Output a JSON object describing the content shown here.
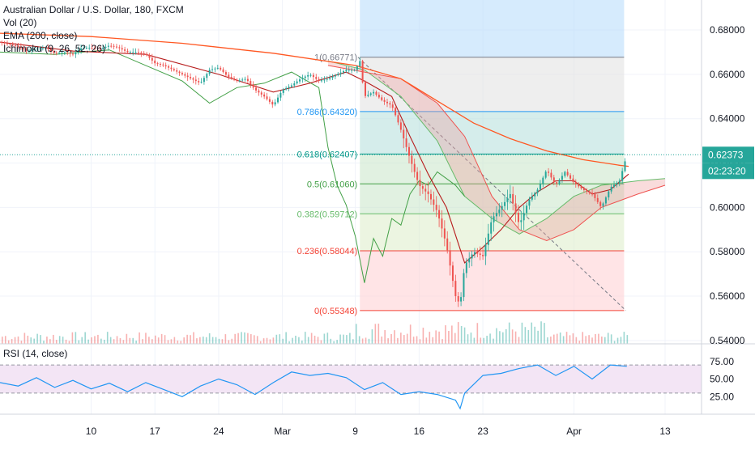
{
  "legend": {
    "symbol": "Australian Dollar / U.S. Dollar, 180, FXCM",
    "volume": "Vol (20)",
    "ema": "EMA (200, close)",
    "ichimoku": "Ichimoku (9, 26, 52, 26)"
  },
  "colors": {
    "up": "#26a69a",
    "down": "#ef5350",
    "ema": "#ff5722",
    "tenkan": "#b71c1c",
    "lagging": "#43a047",
    "rsi": "#2196f3",
    "rsi_band": "#f3e5f5",
    "fib_0": "#f44336",
    "fib_236": "#f44336",
    "fib_382": "#66bb6a",
    "fib_5": "#43a047",
    "fib_618": "#009688",
    "fib_786": "#2196f3",
    "fib_1": "#787b86",
    "price_tag": "#26a69a",
    "time_tag": "#26a69a",
    "projection": "#bbdefb"
  },
  "chart_data": {
    "type": "candlestick",
    "title": "Australian Dollar / U.S. Dollar, 180, FXCM",
    "price_axis": {
      "ticks": [
        "0.68000",
        "0.66000",
        "0.64000",
        "0.62000",
        "0.60000",
        "0.58000",
        "0.56000",
        "0.54000"
      ],
      "tick_values": [
        0.68,
        0.66,
        0.64,
        0.62,
        0.6,
        0.58,
        0.56,
        0.54
      ],
      "range": [
        0.5385,
        0.6935
      ]
    },
    "rsi_axis": {
      "label": "RSI (14, close)",
      "ticks": [
        "75.00",
        "50.00",
        "25.00"
      ],
      "tick_values": [
        75,
        50,
        25
      ],
      "range": [
        0,
        100
      ]
    },
    "time_axis": {
      "labels": [
        "10",
        "17",
        "24",
        "Mar",
        "9",
        "16",
        "23",
        "Apr",
        "13"
      ],
      "label_days": [
        10,
        17,
        24,
        31,
        39,
        46,
        53,
        63,
        73
      ],
      "range": [
        0,
        77
      ]
    },
    "last_price": "0.62373",
    "countdown": "02:23:20",
    "fibonacci": [
      {
        "label": "1(0.66771)",
        "level": 1,
        "price": 0.66771
      },
      {
        "label": "0.786(0.64320)",
        "level": 0.786,
        "price": 0.6432
      },
      {
        "label": "0.618(0.62407)",
        "level": 0.618,
        "price": 0.62407
      },
      {
        "label": "0.5(0.61060)",
        "level": 0.5,
        "price": 0.6106
      },
      {
        "label": "0.382(0.59712)",
        "level": 0.382,
        "price": 0.59712
      },
      {
        "label": "0.236(0.58044)",
        "level": 0.236,
        "price": 0.58044
      },
      {
        "label": "0(0.55348)",
        "level": 0,
        "price": 0.55348
      }
    ],
    "fib_span_days": [
      39.5,
      68.5
    ],
    "trend_line": {
      "from": [
        39.3,
        0.6677
      ],
      "to": [
        68.7,
        0.5535
      ]
    },
    "projection_span_days": [
      39.5,
      68.5
    ],
    "close": [
      [
        0,
        0.6745
      ],
      [
        1,
        0.6735
      ],
      [
        2,
        0.6725
      ],
      [
        3,
        0.6705
      ],
      [
        4,
        0.6715
      ],
      [
        5,
        0.672
      ],
      [
        6,
        0.6695
      ],
      [
        7,
        0.67
      ],
      [
        8,
        0.669
      ],
      [
        9,
        0.672
      ],
      [
        10,
        0.672
      ],
      [
        11,
        0.6715
      ],
      [
        12,
        0.673
      ],
      [
        13,
        0.672
      ],
      [
        14,
        0.67
      ],
      [
        15,
        0.67
      ],
      [
        16,
        0.669
      ],
      [
        17,
        0.665
      ],
      [
        18,
        0.664
      ],
      [
        19,
        0.662
      ],
      [
        20,
        0.66
      ],
      [
        21,
        0.658
      ],
      [
        22,
        0.656
      ],
      [
        23,
        0.662
      ],
      [
        24,
        0.663
      ],
      [
        25,
        0.659
      ],
      [
        26,
        0.657
      ],
      [
        27,
        0.658
      ],
      [
        28,
        0.653
      ],
      [
        29,
        0.65
      ],
      [
        30,
        0.646
      ],
      [
        31,
        0.653
      ],
      [
        32,
        0.655
      ],
      [
        33,
        0.658
      ],
      [
        34,
        0.66
      ],
      [
        35,
        0.657
      ],
      [
        36,
        0.658
      ],
      [
        37,
        0.66
      ],
      [
        38,
        0.662
      ],
      [
        39,
        0.662
      ],
      [
        39.5,
        0.666
      ],
      [
        40,
        0.65
      ],
      [
        41,
        0.652
      ],
      [
        42,
        0.648
      ],
      [
        43,
        0.646
      ],
      [
        44,
        0.635
      ],
      [
        45,
        0.622
      ],
      [
        46,
        0.61
      ],
      [
        47,
        0.606
      ],
      [
        48,
        0.598
      ],
      [
        49,
        0.583
      ],
      [
        50,
        0.56
      ],
      [
        50.5,
        0.556
      ],
      [
        51,
        0.574
      ],
      [
        52,
        0.58
      ],
      [
        53,
        0.578
      ],
      [
        54,
        0.595
      ],
      [
        55,
        0.6
      ],
      [
        56,
        0.606
      ],
      [
        57,
        0.592
      ],
      [
        58,
        0.603
      ],
      [
        59,
        0.608
      ],
      [
        60,
        0.617
      ],
      [
        61,
        0.61
      ],
      [
        62,
        0.616
      ],
      [
        63,
        0.611
      ],
      [
        64,
        0.608
      ],
      [
        65,
        0.606
      ],
      [
        66,
        0.6
      ],
      [
        67,
        0.609
      ],
      [
        68,
        0.612
      ],
      [
        68.8,
        0.6237
      ]
    ],
    "ema": [
      [
        0,
        0.6785
      ],
      [
        10,
        0.677
      ],
      [
        20,
        0.674
      ],
      [
        30,
        0.6695
      ],
      [
        39,
        0.664
      ],
      [
        44,
        0.658
      ],
      [
        48,
        0.648
      ],
      [
        52,
        0.638
      ],
      [
        56,
        0.631
      ],
      [
        60,
        0.6255
      ],
      [
        64,
        0.6215
      ],
      [
        68,
        0.619
      ],
      [
        69,
        0.6185
      ]
    ],
    "tenkan": [
      [
        0,
        0.6745
      ],
      [
        8,
        0.6705
      ],
      [
        16,
        0.669
      ],
      [
        24,
        0.66
      ],
      [
        30,
        0.652
      ],
      [
        34,
        0.656
      ],
      [
        38,
        0.661
      ],
      [
        40,
        0.657
      ],
      [
        43,
        0.65
      ],
      [
        45,
        0.632
      ],
      [
        47,
        0.615
      ],
      [
        49,
        0.6
      ],
      [
        51,
        0.575
      ],
      [
        53,
        0.582
      ],
      [
        55,
        0.59
      ],
      [
        57,
        0.6
      ],
      [
        59,
        0.607
      ],
      [
        61,
        0.612
      ],
      [
        63,
        0.612
      ],
      [
        65,
        0.606
      ],
      [
        67,
        0.608
      ],
      [
        69,
        0.615
      ]
    ],
    "lagging": [
      [
        0,
        0.67
      ],
      [
        6,
        0.669
      ],
      [
        12,
        0.671
      ],
      [
        16,
        0.664
      ],
      [
        20,
        0.657
      ],
      [
        23,
        0.647
      ],
      [
        26,
        0.654
      ],
      [
        29,
        0.656
      ],
      [
        32,
        0.661
      ],
      [
        35,
        0.654
      ],
      [
        36,
        0.627
      ],
      [
        37,
        0.61
      ],
      [
        38,
        0.601
      ],
      [
        39,
        0.587
      ],
      [
        40,
        0.566
      ],
      [
        41,
        0.586
      ],
      [
        42,
        0.578
      ],
      [
        43,
        0.595
      ],
      [
        44,
        0.592
      ],
      [
        45,
        0.606
      ],
      [
        46,
        0.612
      ],
      [
        47,
        0.61
      ],
      [
        48,
        0.616
      ],
      [
        49,
        0.613
      ],
      [
        50,
        0.61
      ],
      [
        51,
        0.605
      ]
    ],
    "cloud_a": [
      [
        36,
        0.666
      ],
      [
        40,
        0.662
      ],
      [
        44,
        0.65
      ],
      [
        48,
        0.63
      ],
      [
        51,
        0.605
      ],
      [
        54,
        0.595
      ],
      [
        57,
        0.588
      ],
      [
        60,
        0.595
      ],
      [
        63,
        0.605
      ],
      [
        66,
        0.61
      ],
      [
        70,
        0.612
      ],
      [
        73,
        0.613
      ]
    ],
    "cloud_b": [
      [
        36,
        0.664
      ],
      [
        40,
        0.661
      ],
      [
        44,
        0.658
      ],
      [
        48,
        0.647
      ],
      [
        51,
        0.632
      ],
      [
        54,
        0.605
      ],
      [
        57,
        0.59
      ],
      [
        60,
        0.585
      ],
      [
        63,
        0.59
      ],
      [
        66,
        0.6
      ],
      [
        70,
        0.606
      ],
      [
        73,
        0.61
      ]
    ],
    "rsi": [
      [
        0,
        45
      ],
      [
        2,
        40
      ],
      [
        4,
        52
      ],
      [
        6,
        38
      ],
      [
        8,
        48
      ],
      [
        10,
        36
      ],
      [
        12,
        44
      ],
      [
        14,
        32
      ],
      [
        16,
        45
      ],
      [
        18,
        35
      ],
      [
        20,
        25
      ],
      [
        22,
        40
      ],
      [
        24,
        50
      ],
      [
        26,
        42
      ],
      [
        28,
        28
      ],
      [
        30,
        45
      ],
      [
        32,
        60
      ],
      [
        34,
        55
      ],
      [
        36,
        58
      ],
      [
        38,
        52
      ],
      [
        40,
        35
      ],
      [
        42,
        45
      ],
      [
        44,
        28
      ],
      [
        46,
        32
      ],
      [
        48,
        28
      ],
      [
        50,
        20
      ],
      [
        50.5,
        8
      ],
      [
        51,
        30
      ],
      [
        53,
        55
      ],
      [
        55,
        58
      ],
      [
        57,
        65
      ],
      [
        59,
        70
      ],
      [
        61,
        55
      ],
      [
        63,
        68
      ],
      [
        65,
        50
      ],
      [
        67,
        70
      ],
      [
        68.8,
        68
      ]
    ]
  }
}
